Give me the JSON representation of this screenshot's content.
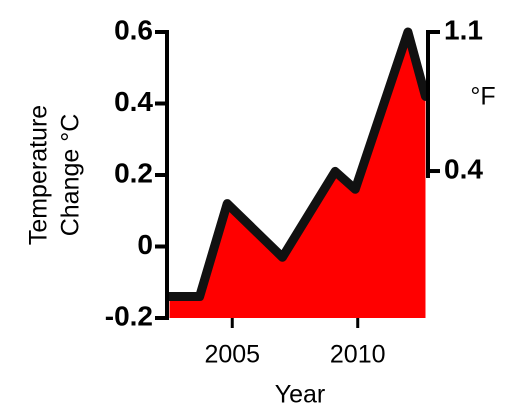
{
  "chart_data": {
    "type": "area",
    "x_label": "Year",
    "y_label_lines": [
      "Temperature",
      "Change °C"
    ],
    "y2_label": "°F",
    "x": [
      2002.5,
      2003.7,
      2004.8,
      2007.0,
      2009.1,
      2009.9,
      2012.0,
      2012.7
    ],
    "series": [
      {
        "color": "#ff0000",
        "values": [
          -0.14,
          -0.14,
          0.12,
          -0.03,
          0.21,
          0.16,
          0.6,
          0.42
        ]
      }
    ],
    "xlim": [
      2002.4,
      2012.8
    ],
    "xticks": [
      2005,
      2010
    ],
    "ylim": [
      -0.2,
      0.6
    ],
    "yticks": [
      {
        "value": -0.2,
        "label": "-0.2"
      },
      0,
      0.2,
      0.4,
      0.6
    ],
    "y2lim": [
      -0.34,
      1.1
    ],
    "y2ticks": [
      0.4,
      1.1
    ]
  }
}
